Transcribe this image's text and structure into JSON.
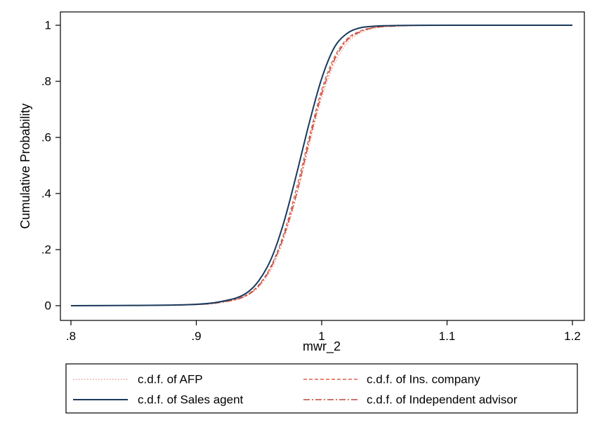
{
  "chart_data": {
    "type": "line",
    "title": "",
    "xlabel": "mwr_2",
    "ylabel": "Cumulative Probability",
    "xlim": [
      0.8,
      1.2
    ],
    "ylim": [
      0,
      1
    ],
    "xticks": [
      0.8,
      0.9,
      1.0,
      1.1,
      1.2
    ],
    "xtick_labels": [
      ".8",
      ".9",
      "1",
      "1.1",
      "1.2"
    ],
    "yticks": [
      0,
      0.2,
      0.4,
      0.6,
      0.8,
      1.0
    ],
    "ytick_labels": [
      "0",
      ".2",
      ".4",
      ".6",
      ".8",
      "1"
    ],
    "grid": false,
    "legend_position": "bottom",
    "x": [
      0.8,
      0.85,
      0.9,
      0.92,
      0.94,
      0.95,
      0.96,
      0.97,
      0.98,
      0.99,
      1.0,
      1.01,
      1.02,
      1.03,
      1.04,
      1.06,
      1.1,
      1.2
    ],
    "series": [
      {
        "name": "c.d.f. of  AFP",
        "color": "#e8a09a",
        "dash": "dotted",
        "values": [
          0.0,
          0.001,
          0.004,
          0.012,
          0.035,
          0.068,
          0.13,
          0.24,
          0.39,
          0.57,
          0.74,
          0.86,
          0.935,
          0.97,
          0.987,
          0.997,
          1.0,
          1.0
        ]
      },
      {
        "name": "c.d.f. of  Sales agent",
        "color": "#1a3a5c",
        "dash": "solid",
        "values": [
          0.0,
          0.001,
          0.005,
          0.015,
          0.045,
          0.09,
          0.17,
          0.3,
          0.47,
          0.65,
          0.81,
          0.92,
          0.97,
          0.99,
          0.996,
          0.999,
          1.0,
          1.0
        ]
      },
      {
        "name": "c.d.f. of  Ins. company",
        "color": "#e0604a",
        "dash": "dashed",
        "values": [
          0.0,
          0.001,
          0.004,
          0.013,
          0.038,
          0.075,
          0.145,
          0.26,
          0.42,
          0.6,
          0.77,
          0.885,
          0.95,
          0.978,
          0.991,
          0.998,
          1.0,
          1.0
        ]
      },
      {
        "name": "c.d.f. of  Independent advisor",
        "color": "#b84a3e",
        "dash": "dashdot",
        "values": [
          0.0,
          0.001,
          0.004,
          0.012,
          0.036,
          0.072,
          0.14,
          0.25,
          0.4,
          0.585,
          0.755,
          0.875,
          0.945,
          0.975,
          0.99,
          0.997,
          1.0,
          1.0
        ]
      }
    ]
  }
}
